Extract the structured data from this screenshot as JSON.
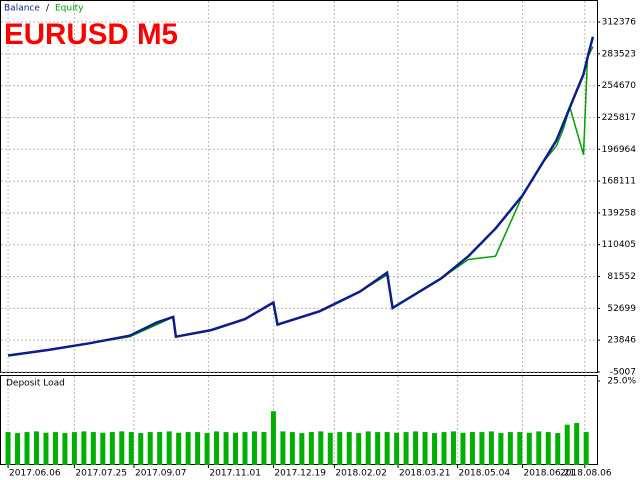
{
  "chart_data": [
    {
      "type": "line",
      "title": "EURUSD M5",
      "legend_separator": "/",
      "x": [
        0,
        30,
        60,
        90,
        110,
        122,
        124,
        150,
        175,
        196,
        199,
        230,
        260,
        280,
        284,
        300,
        320,
        340,
        360,
        380,
        395,
        405,
        410,
        415,
        425,
        428,
        432
      ],
      "series": [
        {
          "name": "Balance",
          "color": "#0a1e8c",
          "values": [
            10000,
            15000,
            21000,
            28000,
            40000,
            45000,
            27000,
            33000,
            43000,
            58000,
            38000,
            50000,
            68000,
            85000,
            53000,
            65000,
            80000,
            100000,
            125000,
            155000,
            185000,
            205000,
            220000,
            235000,
            265000,
            280000,
            299000
          ]
        },
        {
          "name": "Equity",
          "color": "#00a000",
          "values": [
            10000,
            15000,
            21000,
            27000,
            38000,
            45000,
            27000,
            33000,
            43000,
            58000,
            38000,
            50000,
            68000,
            83000,
            53000,
            65000,
            80000,
            97000,
            100000,
            155000,
            185000,
            200000,
            215000,
            235000,
            192000,
            280000,
            290000
          ]
        }
      ],
      "xlim": [
        -3,
        435
      ],
      "xticks": [
        {
          "value": 0,
          "label": "2017.06.06"
        },
        {
          "value": 49,
          "label": "2017.07.25"
        },
        {
          "value": 93,
          "label": "2017.09.07"
        },
        {
          "value": 148,
          "label": "2017.11.01"
        },
        {
          "value": 196,
          "label": "2017.12.19"
        },
        {
          "value": 241,
          "label": "2018.02.02"
        },
        {
          "value": 288,
          "label": "2018.03.21"
        },
        {
          "value": 332,
          "label": "2018.05.04"
        },
        {
          "value": 380,
          "label": "2018.06.21"
        },
        {
          "value": 426,
          "label": "2018.08.06"
        }
      ],
      "ylim": [
        -5007,
        312376
      ],
      "yticks": [
        -5007,
        23846,
        52699,
        81552,
        110405,
        139258,
        168111,
        196964,
        225817,
        254670,
        283523,
        312376
      ],
      "grid": true
    },
    {
      "type": "bar",
      "title": "Deposit Load",
      "color": "#00b000",
      "x": [
        0,
        7,
        14,
        21,
        28,
        35,
        42,
        49,
        56,
        63,
        70,
        77,
        84,
        91,
        98,
        105,
        112,
        119,
        126,
        133,
        140,
        147,
        154,
        161,
        168,
        175,
        182,
        189,
        196,
        203,
        210,
        217,
        224,
        231,
        238,
        245,
        252,
        259,
        266,
        273,
        280,
        287,
        294,
        301,
        308,
        315,
        322,
        329,
        336,
        343,
        350,
        357,
        364,
        371,
        378,
        385,
        392,
        399,
        406,
        413,
        420,
        427
      ],
      "values": [
        9.8,
        9.5,
        9.8,
        10,
        9.6,
        9.8,
        9.5,
        9.8,
        10,
        9.8,
        9.6,
        9.8,
        10,
        9.8,
        9.5,
        9.8,
        9.8,
        10,
        9.6,
        9.8,
        9.8,
        9.5,
        10,
        9.8,
        9.6,
        9.8,
        10,
        9.8,
        16,
        10,
        9.8,
        9.5,
        9.8,
        10,
        9.6,
        9.8,
        9.8,
        9.5,
        10,
        9.8,
        9.8,
        9.6,
        9.8,
        10,
        9.8,
        9.5,
        9.8,
        10,
        9.6,
        9.8,
        9.8,
        10,
        9.5,
        9.8,
        9.8,
        9.6,
        10,
        9.8,
        9.5,
        12,
        12.5,
        9.8
      ],
      "xlim": [
        -3,
        435
      ],
      "ylim": [
        0,
        25
      ],
      "yticks": [
        {
          "value": 25,
          "label": "25.0%"
        }
      ]
    }
  ]
}
